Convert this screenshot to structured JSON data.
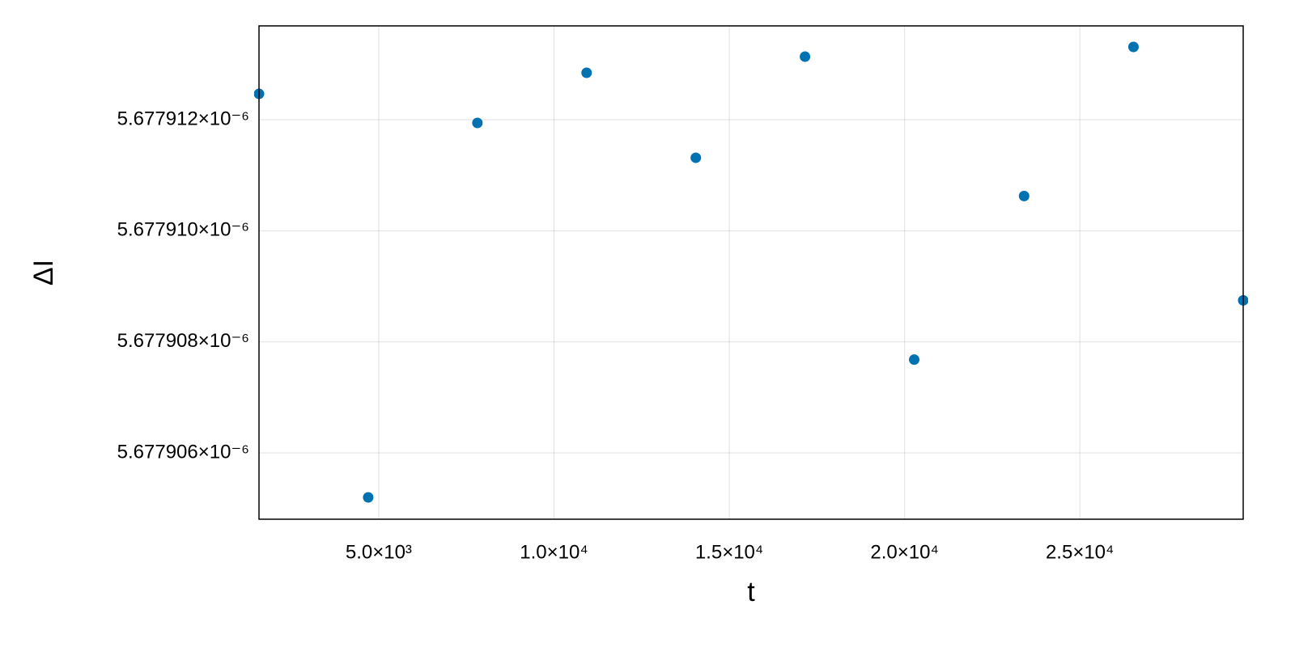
{
  "chart_data": {
    "type": "scatter",
    "x_label": "t",
    "y_label": "ΔI",
    "x": [
      1585,
      4700,
      7815,
      10930,
      14045,
      17160,
      20275,
      23410,
      26530,
      29660
    ],
    "values": [
      5.677912466e-06,
      5.677905199e-06,
      5.677911942e-06,
      5.677912845e-06,
      5.677911315e-06,
      5.677913136e-06,
      5.67790768e-06,
      5.677910626e-06,
      5.677913311e-06,
      5.677908747e-06
    ],
    "color": "#0072b2",
    "xlim": [
      1585,
      29660
    ],
    "ylim": [
      5.677904806e-06,
      5.67791369e-06
    ],
    "xticks": [
      {
        "value": 5000,
        "label": "5.0×10³"
      },
      {
        "value": 10000,
        "label": "1.0×10⁴"
      },
      {
        "value": 15000,
        "label": "1.5×10⁴"
      },
      {
        "value": 20000,
        "label": "2.0×10⁴"
      },
      {
        "value": 25000,
        "label": "2.5×10⁴"
      }
    ],
    "yticks": [
      {
        "value": 5.677906e-06,
        "label": "5.677906×10⁻⁶"
      },
      {
        "value": 5.677908e-06,
        "label": "5.677908×10⁻⁶"
      },
      {
        "value": 5.67791e-06,
        "label": "5.677910×10⁻⁶"
      },
      {
        "value": 5.677912e-06,
        "label": "5.677912×10⁻⁶"
      }
    ],
    "grid": true
  }
}
